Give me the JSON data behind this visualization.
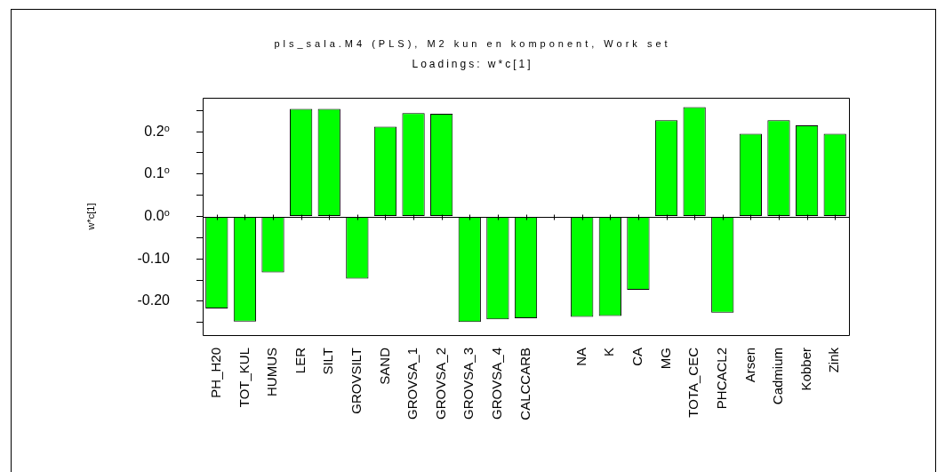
{
  "chart_data": {
    "type": "bar",
    "title": "pls_sala.M4 (PLS), M2 kun en komponent, Work set",
    "subtitle": "Loadings: w*c[1]",
    "ylabel": "w*c[1]",
    "categories": [
      "PH_H20",
      "TOT_KUL",
      "HUMUS",
      "LER",
      "SILT",
      "GROVSILT",
      "SAND",
      "GROVSA_1",
      "GROVSA_2",
      "GROVSA_3",
      "GROVSA_4",
      "CALCCARB",
      null,
      "NA",
      "K",
      "CA",
      "MG",
      "TOTA_CEC",
      "PHCACL2",
      "Arsen",
      "Cadmium",
      "Kobber",
      "Zink"
    ],
    "values": [
      -0.217,
      -0.248,
      -0.132,
      0.254,
      0.254,
      -0.147,
      0.212,
      0.244,
      0.242,
      -0.249,
      -0.243,
      -0.24,
      null,
      -0.237,
      -0.235,
      -0.173,
      0.227,
      0.258,
      -0.227,
      0.195,
      0.227,
      0.215,
      0.195
    ],
    "color": "#00ff00",
    "ylim": [
      -0.28,
      0.28
    ],
    "yticks": [
      {
        "value": -0.25,
        "label": null
      },
      {
        "value": -0.2,
        "label": "-0.20"
      },
      {
        "value": -0.15,
        "label": null
      },
      {
        "value": -0.1,
        "label": "-0.10"
      },
      {
        "value": -0.05,
        "label": null
      },
      {
        "value": 0,
        "label": "0.0⁰"
      },
      {
        "value": 0.05,
        "label": null
      },
      {
        "value": 0.1,
        "label": "0.1⁰"
      },
      {
        "value": 0.15,
        "label": null
      },
      {
        "value": 0.2,
        "label": "0.2⁰"
      },
      {
        "value": 0.25,
        "label": null
      }
    ]
  }
}
